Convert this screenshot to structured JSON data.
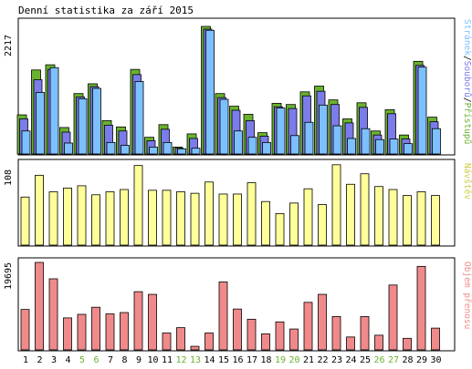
{
  "chart_data": [
    {
      "type": "bar",
      "title": "Denní statistika za září 2015",
      "categories": [
        "1",
        "2",
        "3",
        "4",
        "5",
        "6",
        "7",
        "8",
        "9",
        "10",
        "11",
        "12",
        "13",
        "14",
        "15",
        "16",
        "17",
        "18",
        "19",
        "20",
        "21",
        "22",
        "23",
        "24",
        "25",
        "26",
        "27",
        "28",
        "29",
        "30"
      ],
      "weekend_days": [
        "5",
        "6",
        "12",
        "13",
        "19",
        "20",
        "26",
        "27"
      ],
      "ymax_label": "2217",
      "ylim": [
        0,
        2217
      ],
      "legend": [
        "Stránek",
        "Souborů",
        "Přístupů"
      ],
      "series": [
        {
          "name": "Přístupů",
          "color": "#6ab22e",
          "values": [
            680,
            1460,
            1550,
            460,
            1050,
            1220,
            580,
            470,
            1470,
            290,
            510,
            120,
            350,
            2217,
            1050,
            830,
            690,
            370,
            880,
            860,
            1080,
            1180,
            940,
            610,
            890,
            400,
            770,
            330,
            1610,
            640
          ]
        },
        {
          "name": "Souborů",
          "color": "#7b7bea",
          "values": [
            610,
            1290,
            1470,
            380,
            990,
            1170,
            500,
            400,
            1380,
            230,
            430,
            100,
            270,
            2170,
            980,
            760,
            580,
            310,
            820,
            790,
            1010,
            1090,
            860,
            540,
            810,
            330,
            700,
            260,
            1540,
            560
          ]
        },
        {
          "name": "Stránek",
          "color": "#7cc0ff",
          "values": [
            400,
            1070,
            1500,
            190,
            960,
            1140,
            200,
            150,
            1260,
            120,
            200,
            90,
            100,
            2150,
            950,
            400,
            290,
            200,
            800,
            320,
            550,
            850,
            490,
            270,
            440,
            250,
            260,
            180,
            1510,
            440
          ]
        }
      ]
    },
    {
      "type": "bar",
      "ymax_label": "108",
      "ylim": [
        0,
        108
      ],
      "series": [
        {
          "name": "Návštěv",
          "color": "#ffff99",
          "values": [
            64,
            93,
            71,
            76,
            79,
            67,
            71,
            74,
            106,
            73,
            73,
            71,
            69,
            84,
            68,
            68,
            83,
            58,
            42,
            56,
            75,
            54,
            107,
            81,
            95,
            78,
            74,
            66,
            71,
            66
          ]
        }
      ]
    },
    {
      "type": "bar",
      "ymax_label": "19695",
      "ylim": [
        0,
        19695
      ],
      "series": [
        {
          "name": "Objem přenosu",
          "color": "#f08a8a",
          "values": [
            9100,
            19695,
            16000,
            7200,
            8000,
            9600,
            8100,
            8400,
            13100,
            12500,
            3800,
            5000,
            800,
            3800,
            15300,
            9200,
            6900,
            3600,
            6300,
            4700,
            10700,
            12500,
            7500,
            2900,
            7500,
            3300,
            14600,
            2600,
            18800,
            4900
          ]
        }
      ]
    }
  ]
}
